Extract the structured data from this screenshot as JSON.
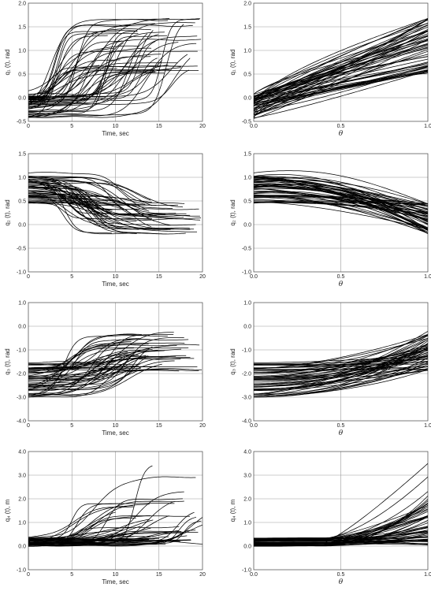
{
  "chart_data": [
    {
      "id": "q1-time",
      "type": "line",
      "xlabel": "Time, sec",
      "ylabel": "q₁ (t), rad",
      "xlim": [
        0,
        20
      ],
      "ylim": [
        -0.5,
        2.0
      ],
      "xticks": [
        "0",
        "5",
        "10",
        "15",
        "20"
      ],
      "yticks": [
        "-0.5",
        "0.0",
        "0.5",
        "1.0",
        "1.5",
        "2.0"
      ],
      "grid": true,
      "n_curves": 55,
      "curve_shape": "sigmoid",
      "start_range": [
        -0.45,
        0.1
      ],
      "end_range": [
        0.5,
        1.7
      ],
      "transition_x_range": [
        2.5,
        17
      ],
      "end_x_range": [
        8,
        20
      ]
    },
    {
      "id": "q1-theta",
      "type": "line",
      "xlabel": "θ",
      "ylabel": "q₁ (t), rad",
      "xlim": [
        0.0,
        1.0
      ],
      "ylim": [
        -0.5,
        2.0
      ],
      "xticks": [
        "0.0",
        "0.5",
        "1.0"
      ],
      "yticks": [
        "-0.5",
        "0.0",
        "0.5",
        "1.0",
        "1.5",
        "2.0"
      ],
      "grid": true,
      "n_curves": 55,
      "curve_shape": "rising",
      "start_range": [
        -0.45,
        0.1
      ],
      "end_range": [
        0.5,
        1.7
      ]
    },
    {
      "id": "q2-time",
      "type": "line",
      "xlabel": "Time, sec",
      "ylabel": "q₂ (t), rad",
      "xlim": [
        0,
        20
      ],
      "ylim": [
        -1.0,
        1.5
      ],
      "xticks": [
        "0",
        "5",
        "10",
        "15",
        "20"
      ],
      "yticks": [
        "-1.0",
        "-0.5",
        "0.0",
        "0.5",
        "1.0",
        "1.5"
      ],
      "grid": true,
      "n_curves": 55,
      "curve_shape": "sigmoid",
      "start_range": [
        0.45,
        1.1
      ],
      "end_range": [
        -0.2,
        0.45
      ],
      "transition_x_range": [
        4,
        13
      ],
      "end_x_range": [
        8,
        20
      ]
    },
    {
      "id": "q2-theta",
      "type": "line",
      "xlabel": "θ",
      "ylabel": "q₂ (t), rad",
      "xlim": [
        0.0,
        1.0
      ],
      "ylim": [
        -1.0,
        1.5
      ],
      "xticks": [
        "0.0",
        "0.5",
        "1.0"
      ],
      "yticks": [
        "-1.0",
        "-0.5",
        "0.0",
        "0.5",
        "1.0",
        "1.5"
      ],
      "grid": true,
      "n_curves": 55,
      "curve_shape": "hump-falling",
      "start_range": [
        0.45,
        1.1
      ],
      "end_range": [
        -0.2,
        0.45
      ]
    },
    {
      "id": "q3-time",
      "type": "line",
      "xlabel": "Time, sec",
      "ylabel": "q₃ (t), rad",
      "xlim": [
        0,
        20
      ],
      "ylim": [
        -4.0,
        1.0
      ],
      "xticks": [
        "0",
        "5",
        "10",
        "15",
        "20"
      ],
      "yticks": [
        "-4.0",
        "-3.0",
        "-2.0",
        "-1.0",
        "0.0",
        "1.0"
      ],
      "grid": true,
      "n_curves": 55,
      "curve_shape": "sigmoid",
      "start_range": [
        -3.0,
        -1.5
      ],
      "end_range": [
        -1.9,
        -0.2
      ],
      "transition_x_range": [
        4,
        12
      ],
      "end_x_range": [
        8,
        20
      ]
    },
    {
      "id": "q3-theta",
      "type": "line",
      "xlabel": "θ",
      "ylabel": "q₃ (t), rad",
      "xlim": [
        0.0,
        1.0
      ],
      "ylim": [
        -4.0,
        1.0
      ],
      "xticks": [
        "0.0",
        "0.5",
        "1.0"
      ],
      "yticks": [
        "-4.0",
        "-3.0",
        "-2.0",
        "-1.0",
        "0.0",
        "1.0"
      ],
      "grid": true,
      "n_curves": 55,
      "curve_shape": "rising-late",
      "start_range": [
        -3.0,
        -1.5
      ],
      "end_range": [
        -1.9,
        -0.2
      ]
    },
    {
      "id": "q4-time",
      "type": "line",
      "xlabel": "Time, sec",
      "ylabel": "q₄ (t), m",
      "xlim": [
        0,
        20
      ],
      "ylim": [
        -1.0,
        4.0
      ],
      "xticks": [
        "0",
        "5",
        "10",
        "15",
        "20"
      ],
      "yticks": [
        "-1.0",
        "0.0",
        "1.0",
        "2.0",
        "3.0",
        "4.0"
      ],
      "grid": true,
      "n_curves": 55,
      "curve_shape": "step-rise",
      "start_range": [
        0.0,
        0.35
      ],
      "end_range": [
        0.0,
        3.55
      ],
      "transition_x_range": [
        5,
        19
      ],
      "end_x_range": [
        8,
        20
      ]
    },
    {
      "id": "q4-theta",
      "type": "line",
      "xlabel": "θ",
      "ylabel": "q₄ (t), m",
      "xlim": [
        0.0,
        1.0
      ],
      "ylim": [
        -1.0,
        4.0
      ],
      "xticks": [
        "0.0",
        "0.5",
        "1.0"
      ],
      "yticks": [
        "-1.0",
        "0.0",
        "1.0",
        "2.0",
        "3.0",
        "4.0"
      ],
      "grid": true,
      "n_curves": 55,
      "curve_shape": "flat-then-rise",
      "start_range": [
        0.0,
        0.35
      ],
      "end_range": [
        0.0,
        3.55
      ]
    }
  ]
}
